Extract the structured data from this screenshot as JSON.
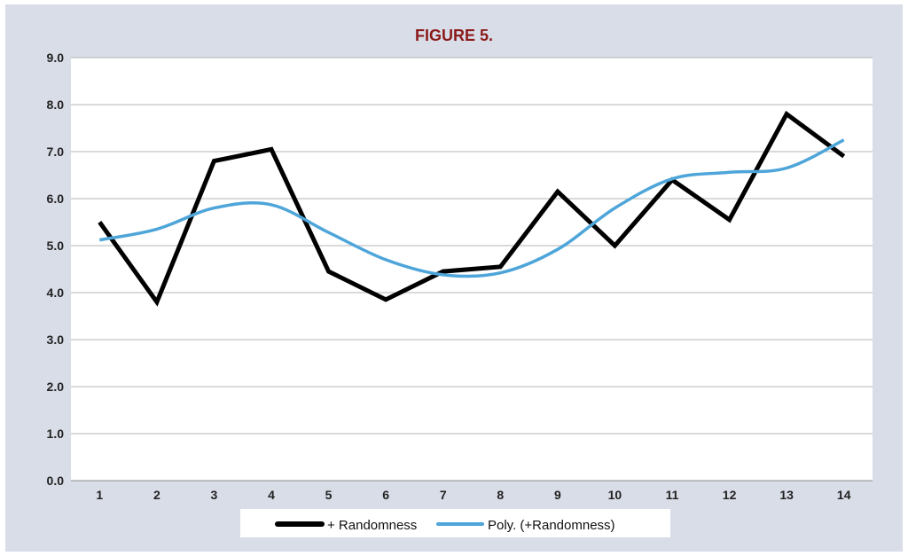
{
  "chart_data": {
    "type": "line",
    "title": "FIGURE 5.",
    "xlabel": "",
    "ylabel": "",
    "x": [
      1,
      2,
      3,
      4,
      5,
      6,
      7,
      8,
      9,
      10,
      11,
      12,
      13,
      14
    ],
    "series": [
      {
        "name": "+ Randomness",
        "values": [
          5.5,
          3.8,
          6.8,
          7.05,
          4.45,
          3.85,
          4.45,
          4.55,
          6.15,
          5.0,
          6.4,
          5.55,
          7.8,
          6.9
        ],
        "color": "#000000"
      },
      {
        "name": "Poly. (+Randomness)",
        "values": [
          5.12,
          5.35,
          5.8,
          5.87,
          5.28,
          4.7,
          4.38,
          4.42,
          4.92,
          5.8,
          6.42,
          6.56,
          6.65,
          7.25
        ],
        "color": "#4ea5d9"
      }
    ],
    "ylim": [
      0,
      9
    ],
    "yticks": [
      "0.0",
      "1.0",
      "2.0",
      "3.0",
      "4.0",
      "5.0",
      "6.0",
      "7.0",
      "8.0",
      "9.0"
    ],
    "xticks": [
      "1",
      "2",
      "3",
      "4",
      "5",
      "6",
      "7",
      "8",
      "9",
      "10",
      "11",
      "12",
      "13",
      "14"
    ],
    "grid": true,
    "legend_position": "bottom",
    "title_color": "#8b1a1a"
  }
}
